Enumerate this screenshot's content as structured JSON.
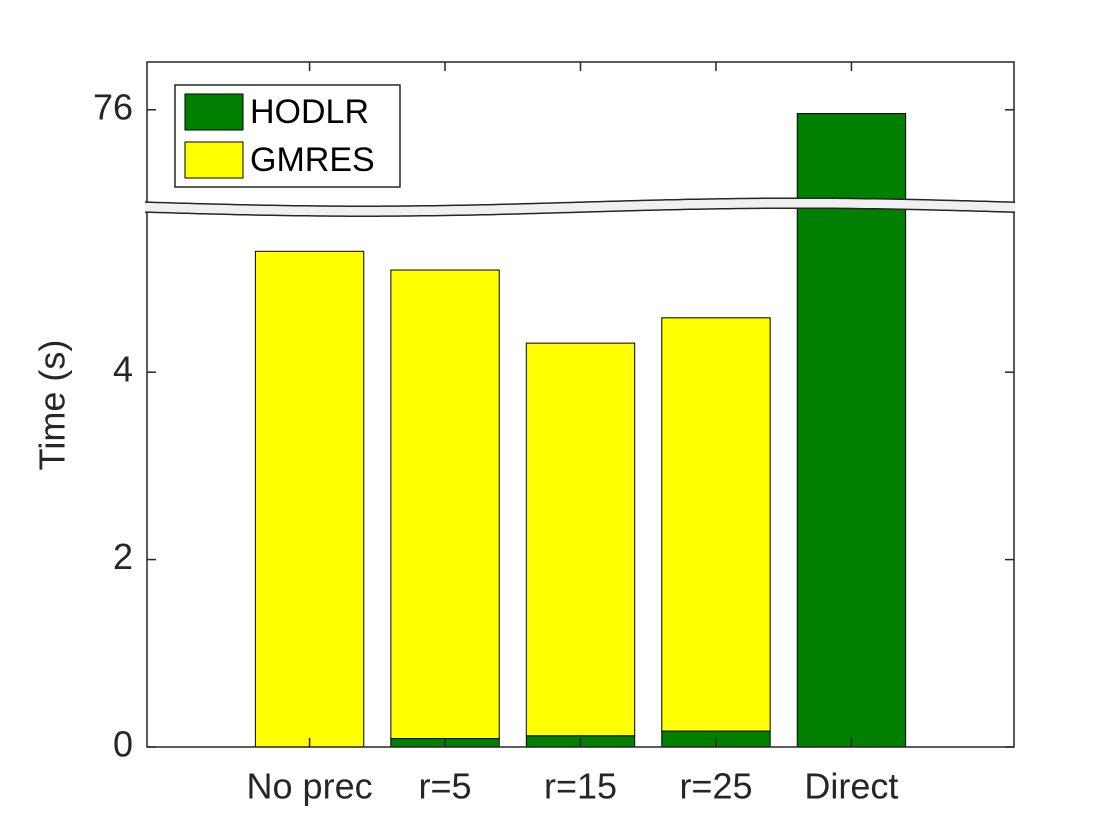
{
  "chart_data": {
    "type": "bar",
    "stacked": true,
    "y_label": "Time (s)",
    "categories": [
      "No prec",
      "r=5",
      "r=15",
      "r=25",
      "Direct"
    ],
    "series": [
      {
        "name": "HODLR",
        "color": "#007f00",
        "values": [
          0,
          0.09,
          0.12,
          0.17,
          75.96
        ]
      },
      {
        "name": "GMRES",
        "color": "#ffff00",
        "values": [
          5.29,
          5.0,
          4.19,
          4.41,
          0
        ]
      }
    ],
    "ylim": [
      0,
      76.51
    ],
    "y_break": [
      5.75,
      74.95
    ],
    "yticks": [
      0,
      2,
      4,
      76
    ],
    "grid": false,
    "legend": "top-left"
  }
}
